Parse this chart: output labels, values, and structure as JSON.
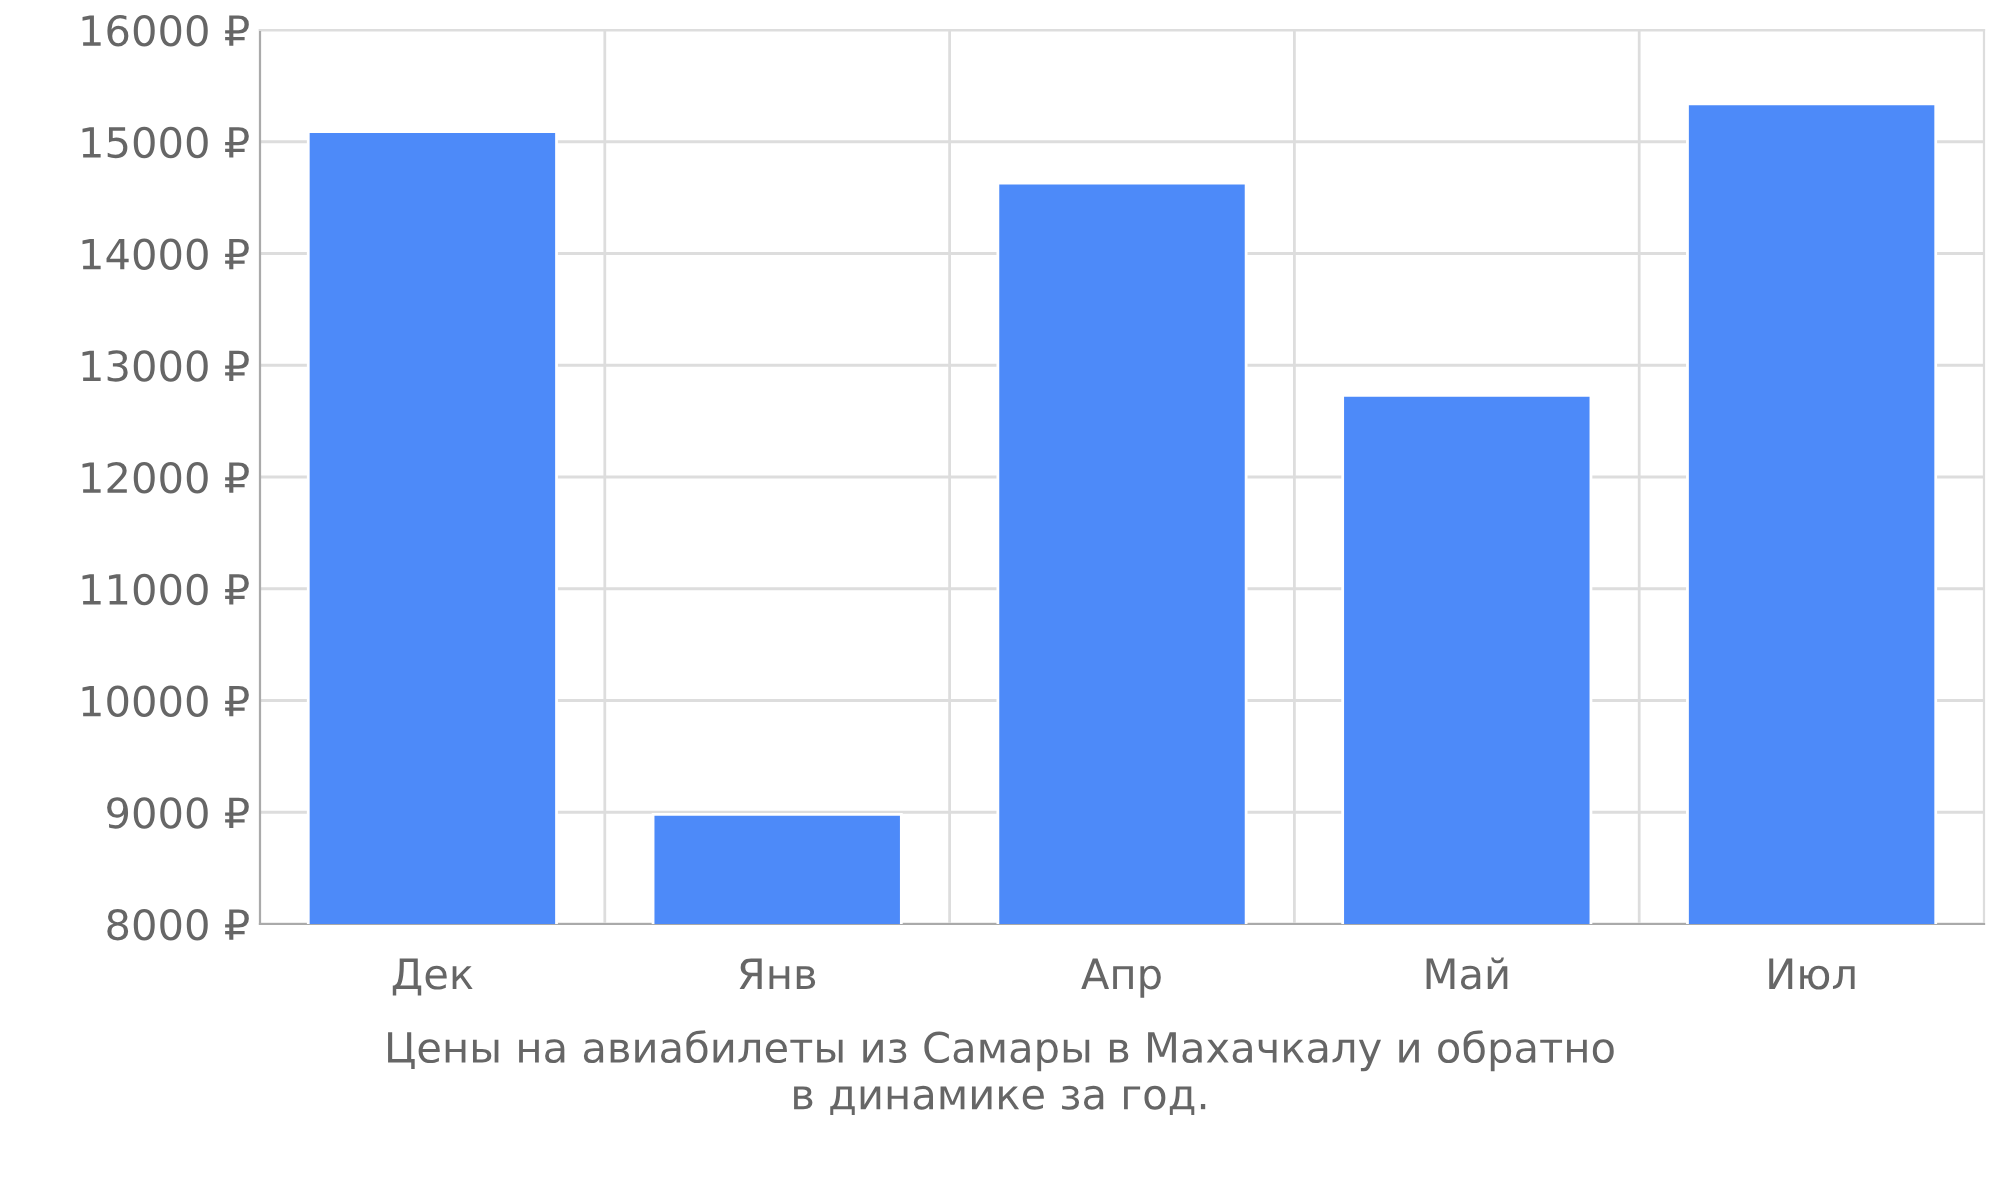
{
  "chart_data": {
    "type": "bar",
    "categories": [
      "Дек",
      "Янв",
      "Апр",
      "Май",
      "Июл"
    ],
    "values": [
      15090,
      8980,
      14630,
      12730,
      15340
    ],
    "color": "#4d8af9",
    "ylim": [
      8000,
      16000
    ],
    "yticks": [
      {
        "value": 8000,
        "label": "8000 ₽"
      },
      {
        "value": 9000,
        "label": "9000 ₽"
      },
      {
        "value": 10000,
        "label": "10000 ₽"
      },
      {
        "value": 11000,
        "label": "11000 ₽"
      },
      {
        "value": 12000,
        "label": "12000 ₽"
      },
      {
        "value": 13000,
        "label": "13000 ₽"
      },
      {
        "value": 14000,
        "label": "14000 ₽"
      },
      {
        "value": 15000,
        "label": "15000 ₽"
      },
      {
        "value": 16000,
        "label": "16000 ₽"
      }
    ],
    "grid": true,
    "annotations": [
      "Цены на авиабилеты из Самары в Махачкалу и обратно\nв динамике за год."
    ]
  }
}
